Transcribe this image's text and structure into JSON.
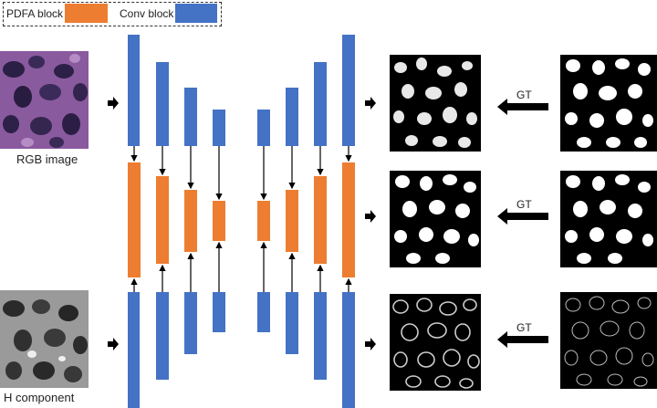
{
  "legend": {
    "pdfa_label": "PDFA block",
    "conv_label": "Conv block",
    "pdfa_color": "#ed7d31",
    "conv_color": "#4472c4"
  },
  "inputs": {
    "rgb_label": "RGB image",
    "h_label": "H component"
  },
  "gt_labels": [
    "GT",
    "GT",
    "GT"
  ]
}
